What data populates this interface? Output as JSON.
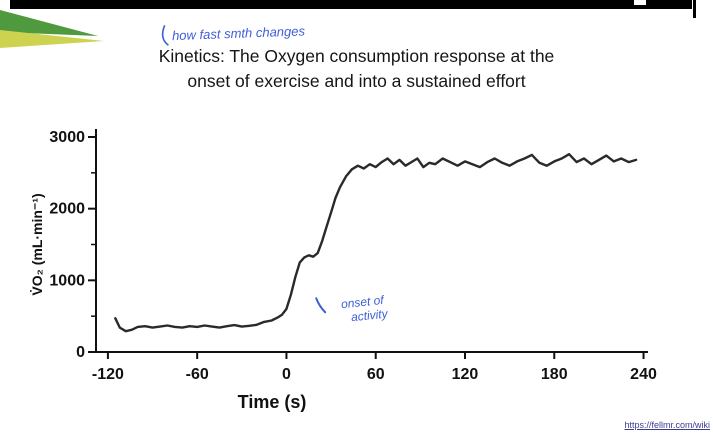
{
  "palette": {
    "top_bar": "#000000",
    "stripe_green": "#4f9a3e",
    "stripe_yellow": "#cdd34e",
    "ink_blue": "#3f5fd6",
    "line_color": "#2a2a2a"
  },
  "header": {
    "handwriting": "how fast smth changes"
  },
  "title": {
    "line1": "Kinetics: The Oxygen consumption response at the",
    "line2": "onset of exercise and into a sustained effort"
  },
  "footer": {
    "source_link": "https://fellmr.com/wiki"
  },
  "chart_data": {
    "type": "line",
    "title": "",
    "xlabel": "Time (s)",
    "ylabel": "V̇O₂ (mL·min⁻¹)",
    "xlim": [
      -128,
      243
    ],
    "ylim": [
      0,
      3000
    ],
    "x_ticks": [
      -120,
      -60,
      0,
      60,
      120,
      180,
      240
    ],
    "y_ticks": [
      0,
      1000,
      2000,
      3000
    ],
    "y_minor_step": 500,
    "grid": false,
    "legend": "none",
    "line_color": "#2a2a2a",
    "annotation": {
      "lines": [
        "onset of",
        "activity"
      ],
      "x": 37,
      "y": 610,
      "mark_x": 20,
      "mark_y": 750,
      "color": "#3f5fd6"
    },
    "series": [
      {
        "name": "VO2",
        "x": [
          -115,
          -112,
          -108,
          -104,
          -100,
          -95,
          -90,
          -85,
          -80,
          -75,
          -70,
          -65,
          -60,
          -55,
          -50,
          -45,
          -40,
          -35,
          -30,
          -25,
          -20,
          -15,
          -10,
          -6,
          -3,
          0,
          3,
          6,
          9,
          12,
          15,
          18,
          21,
          24,
          27,
          30,
          33,
          36,
          40,
          44,
          48,
          52,
          56,
          60,
          64,
          68,
          72,
          76,
          80,
          84,
          88,
          92,
          96,
          100,
          105,
          110,
          115,
          120,
          125,
          130,
          135,
          140,
          145,
          150,
          155,
          160,
          165,
          170,
          175,
          180,
          185,
          190,
          195,
          200,
          205,
          210,
          215,
          220,
          225,
          230,
          235
        ],
        "y": [
          470,
          340,
          290,
          310,
          350,
          360,
          340,
          355,
          370,
          350,
          340,
          360,
          350,
          370,
          355,
          340,
          360,
          375,
          355,
          365,
          380,
          420,
          440,
          480,
          520,
          600,
          800,
          1050,
          1250,
          1320,
          1350,
          1330,
          1380,
          1550,
          1750,
          1950,
          2150,
          2300,
          2450,
          2550,
          2600,
          2560,
          2620,
          2580,
          2650,
          2700,
          2620,
          2680,
          2600,
          2650,
          2700,
          2580,
          2640,
          2620,
          2700,
          2650,
          2600,
          2660,
          2620,
          2580,
          2650,
          2700,
          2640,
          2600,
          2660,
          2700,
          2750,
          2640,
          2600,
          2660,
          2700,
          2760,
          2650,
          2700,
          2620,
          2680,
          2740,
          2660,
          2700,
          2650,
          2680
        ]
      }
    ]
  }
}
